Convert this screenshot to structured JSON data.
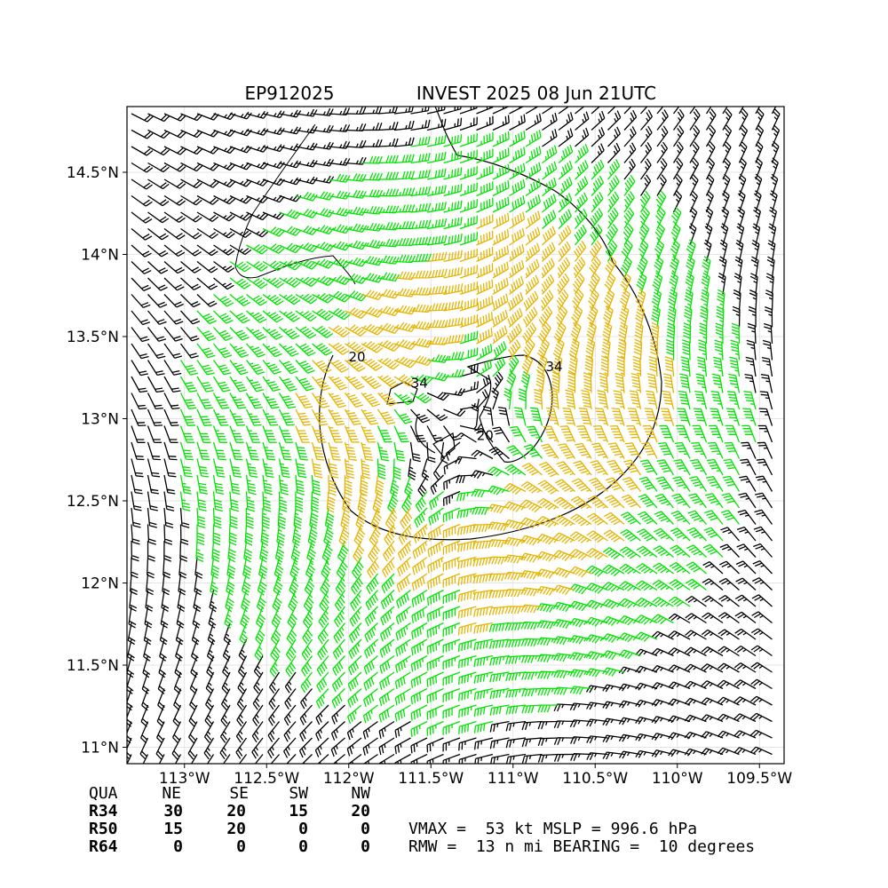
{
  "header": {
    "storm_id": "EP912025",
    "storm_label": "INVEST 2025 08 Jun 21UTC"
  },
  "map": {
    "lon_range": [
      -113.35,
      -109.35
    ],
    "lat_range": [
      10.9,
      14.9
    ],
    "x_ticks": [
      {
        "value": -113.0,
        "label": "113°W"
      },
      {
        "value": -112.5,
        "label": "112.5°W"
      },
      {
        "value": -112.0,
        "label": "112°W"
      },
      {
        "value": -111.5,
        "label": "111.5°W"
      },
      {
        "value": -111.0,
        "label": "111°W"
      },
      {
        "value": -110.5,
        "label": "110.5°W"
      },
      {
        "value": -110.0,
        "label": "110°W"
      },
      {
        "value": -109.5,
        "label": "109.5°W"
      }
    ],
    "y_ticks": [
      {
        "value": 11.0,
        "label": "11°N"
      },
      {
        "value": 11.5,
        "label": "11.5°N"
      },
      {
        "value": 12.0,
        "label": "12°N"
      },
      {
        "value": 12.5,
        "label": "12.5°N"
      },
      {
        "value": 13.0,
        "label": "13°N"
      },
      {
        "value": 13.5,
        "label": "13.5°N"
      },
      {
        "value": 14.0,
        "label": "14°N"
      },
      {
        "value": 14.5,
        "label": "14.5°N"
      }
    ],
    "gridlines": true,
    "center": {
      "lon": -111.3,
      "lat": 12.92
    },
    "barb_colors": {
      "below_34": "#000000",
      "34_to_50": "#00e400",
      "50_plus": "#e6b400"
    },
    "contour_labels": [
      {
        "text": "20",
        "lon": -111.95,
        "lat": 13.35
      },
      {
        "text": "34",
        "lon": -111.57,
        "lat": 13.19
      },
      {
        "text": "20",
        "lon": -111.17,
        "lat": 12.87
      },
      {
        "text": "34",
        "lon": -110.75,
        "lat": 13.29
      }
    ]
  },
  "wind_radii": {
    "columns": [
      "QUA",
      "NE",
      "SE",
      "SW",
      "NW"
    ],
    "rows": [
      {
        "label": "R34",
        "values": [
          "30",
          "20",
          "15",
          "20"
        ]
      },
      {
        "label": "R50",
        "values": [
          "15",
          "20",
          "0",
          "0"
        ]
      },
      {
        "label": "R64",
        "values": [
          "0",
          "0",
          "0",
          "0"
        ]
      }
    ]
  },
  "summary": {
    "line1": "VMAX =  53 kt MSLP = 996.6 hPa",
    "line2": "RMW =  13 n mi BEARING =  10 degrees"
  }
}
